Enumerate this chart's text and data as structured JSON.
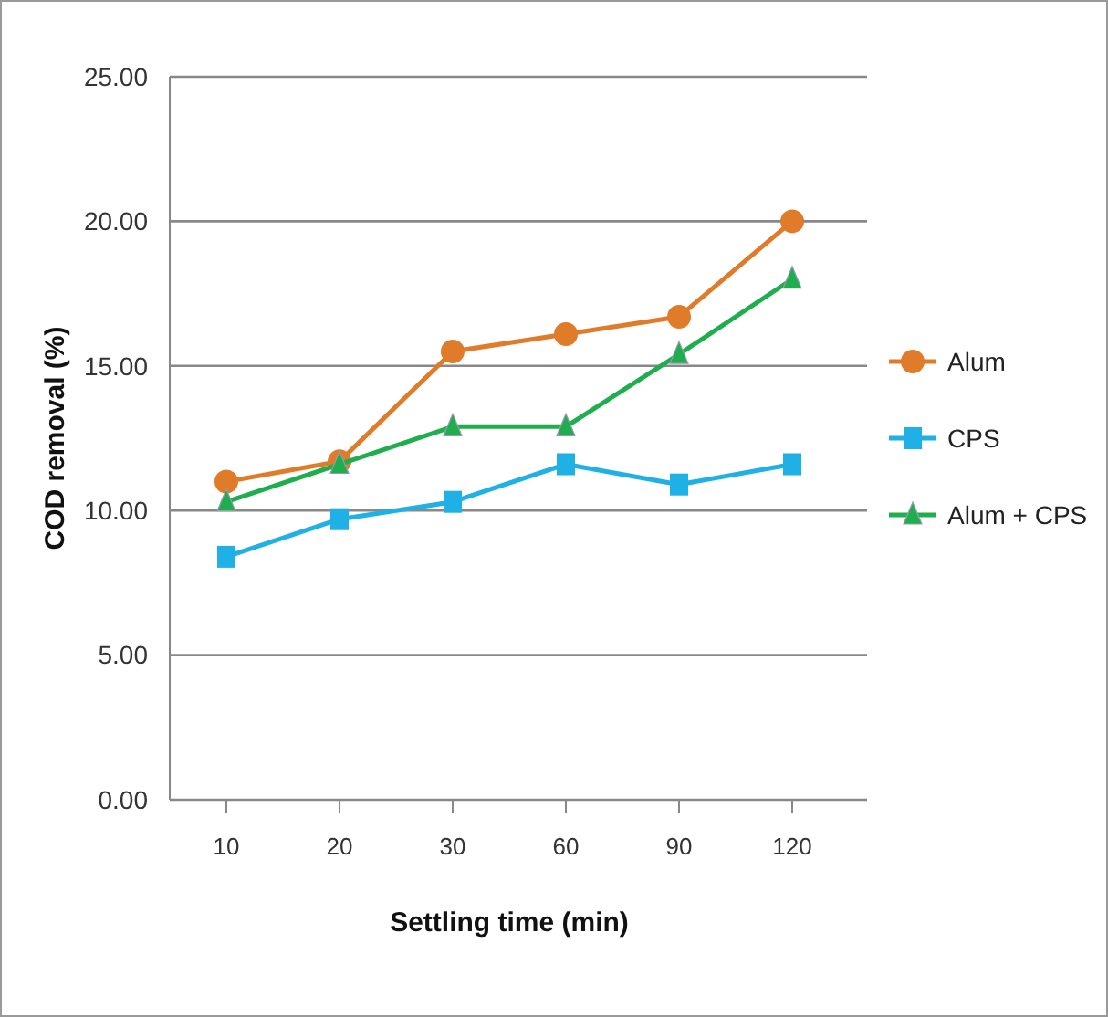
{
  "chart_data": {
    "type": "line",
    "xlabel": "Settling time (min)",
    "ylabel": "COD removal (%)",
    "categories": [
      "10",
      "20",
      "30",
      "60",
      "90",
      "120"
    ],
    "series": [
      {
        "name": "Alum",
        "color": "#e07b2a",
        "marker": "circle",
        "values": [
          11.0,
          11.7,
          15.5,
          16.1,
          16.7,
          20.0
        ]
      },
      {
        "name": "CPS",
        "color": "#1fb0e6",
        "marker": "square",
        "values": [
          8.4,
          9.7,
          10.3,
          11.6,
          10.9,
          11.6
        ]
      },
      {
        "name": "Alum + CPS",
        "color": "#1fae4e",
        "marker": "triangle",
        "values": [
          10.3,
          11.6,
          12.9,
          12.9,
          15.4,
          18.0
        ]
      }
    ],
    "ylim": [
      0,
      25
    ],
    "yticks": [
      {
        "value": 0,
        "label": "0.00"
      },
      {
        "value": 5,
        "label": "5.00"
      },
      {
        "value": 10,
        "label": "10.00"
      },
      {
        "value": 15,
        "label": "15.00"
      },
      {
        "value": 20,
        "label": "20.00"
      },
      {
        "value": 25,
        "label": "25.00"
      }
    ],
    "grid": "y",
    "legend": "right"
  }
}
